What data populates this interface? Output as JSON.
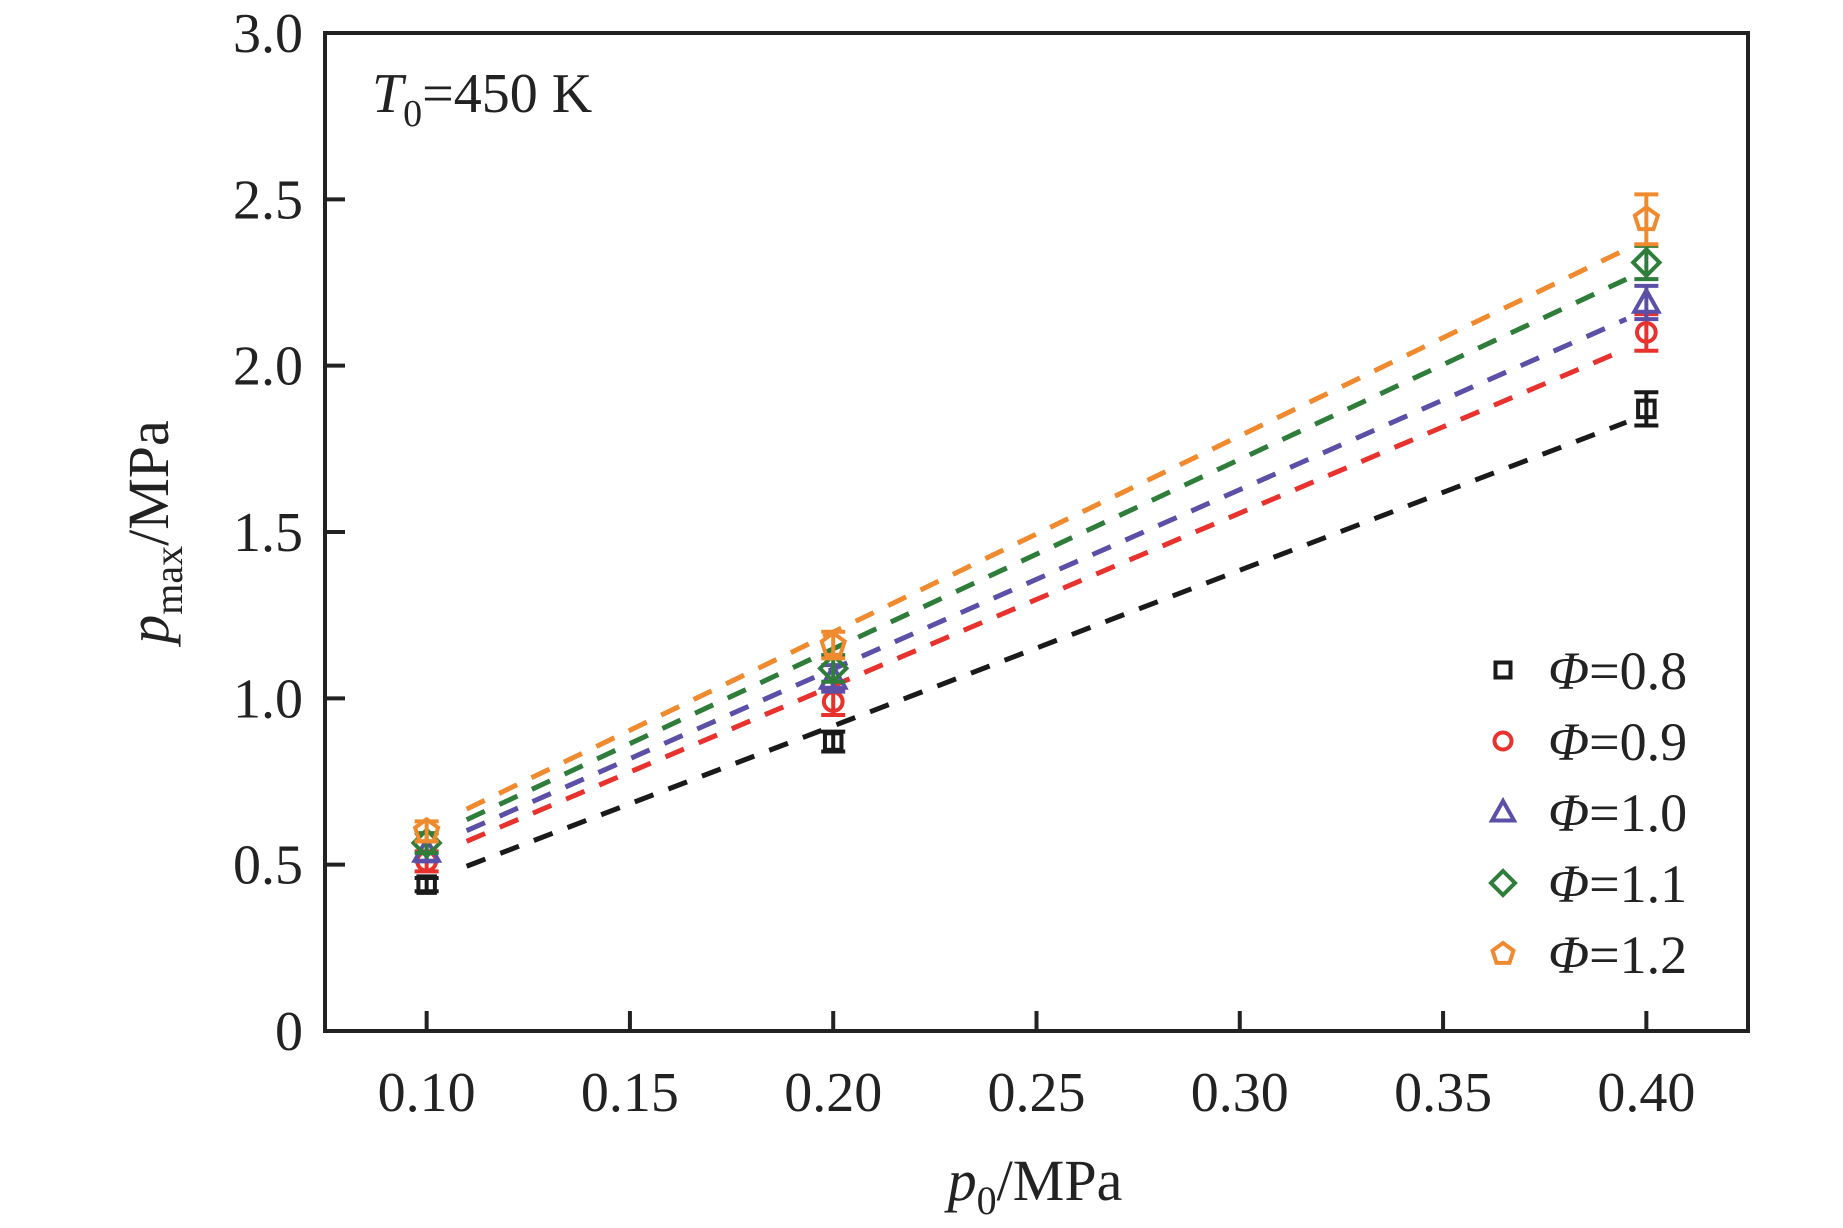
{
  "chart_data": {
    "type": "scatter",
    "annotation": {
      "T": "T",
      "sub": "0",
      "rest": "=450 K"
    },
    "xlabel": {
      "main": "p",
      "sub": "0",
      "unit": "/MPa"
    },
    "ylabel": {
      "main": "p",
      "sub": "max",
      "unit": "/MPa"
    },
    "xlim": [
      0.075,
      0.425
    ],
    "ylim": [
      0,
      3.0
    ],
    "xticks": [
      "0.10",
      "0.15",
      "0.20",
      "0.25",
      "0.30",
      "0.35",
      "0.40"
    ],
    "yticks": [
      "0",
      "0.5",
      "1.0",
      "1.5",
      "2.0",
      "2.5",
      "3.0"
    ],
    "grid": false,
    "legend_position": "bottom-right",
    "x": [
      0.1,
      0.2,
      0.4
    ],
    "series": [
      {
        "name": "Φ=0.8",
        "phi_symbol": "Φ",
        "phi_value": "=0.8",
        "marker": "square",
        "color": "#1a1a1a",
        "values": [
          0.44,
          0.87,
          1.87
        ],
        "errors": [
          0.02,
          0.03,
          0.05
        ],
        "fit": [
          0.45,
          1.83
        ]
      },
      {
        "name": "Φ=0.9",
        "phi_symbol": "Φ",
        "phi_value": "=0.9",
        "marker": "circle",
        "color": "#e8322e",
        "values": [
          0.51,
          0.99,
          2.1
        ],
        "errors": [
          0.03,
          0.04,
          0.055
        ],
        "fit": [
          0.52,
          2.05
        ]
      },
      {
        "name": "Φ=1.0",
        "phi_symbol": "Φ",
        "phi_value": "=1.0",
        "marker": "triangle",
        "color": "#5b4fa8",
        "values": [
          0.54,
          1.06,
          2.19
        ],
        "errors": [
          0.03,
          0.04,
          0.05
        ],
        "fit": [
          0.55,
          2.14
        ]
      },
      {
        "name": "Φ=1.1",
        "phi_symbol": "Φ",
        "phi_value": "=1.1",
        "marker": "diamond",
        "color": "#2f7d3a",
        "values": [
          0.565,
          1.09,
          2.31
        ],
        "errors": [
          0.03,
          0.04,
          0.05
        ],
        "fit": [
          0.58,
          2.26
        ]
      },
      {
        "name": "Φ=1.2",
        "phi_symbol": "Φ",
        "phi_value": "=1.2",
        "marker": "pentagon",
        "color": "#f08a2f",
        "values": [
          0.6,
          1.16,
          2.44
        ],
        "errors": [
          0.03,
          0.04,
          0.075
        ],
        "fit": [
          0.61,
          2.35
        ]
      }
    ]
  }
}
